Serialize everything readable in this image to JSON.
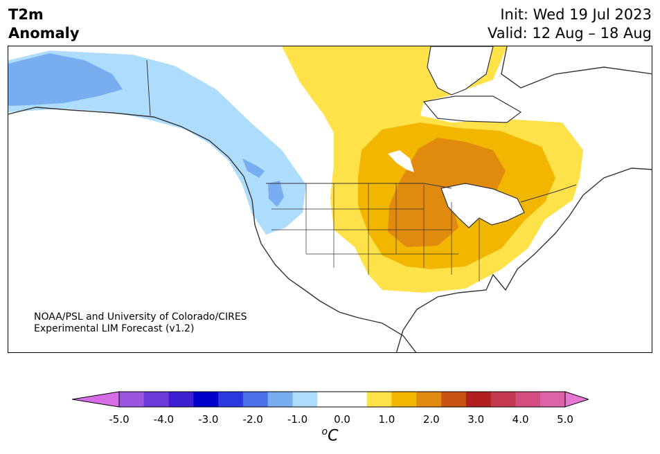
{
  "title": {
    "left_line1": "T2m",
    "left_line2": "Anomaly",
    "init": "Init: Wed 19 Jul 2023",
    "valid": "Valid: 12 Aug – 18 Aug"
  },
  "credit": {
    "line1": "NOAA/PSL and University of Colorado/CIRES",
    "line2": "Experimental LIM Forecast (v1.2)"
  },
  "colorbar": {
    "colors": [
      "#d56ee6",
      "#9b55de",
      "#6a3bd8",
      "#3e20d0",
      "#0000cc",
      "#2a3ade",
      "#4a70e8",
      "#78aef0",
      "#aedcfc",
      "#ffffff",
      "#ffffff",
      "#ffe14a",
      "#f2b500",
      "#e08a0e",
      "#c85414",
      "#b02020",
      "#c43850",
      "#d24e80",
      "#dc62aa",
      "#e676d2"
    ],
    "ticks": [
      "-5.0",
      "-4.0",
      "-3.0",
      "-2.0",
      "-1.0",
      "0.0",
      "1.0",
      "2.0",
      "3.0",
      "4.0",
      "5.0"
    ],
    "unit_sup": "o",
    "unit": "C"
  },
  "map_colors": {
    "land": "#ffffff",
    "coast": "#333333",
    "cool_light": "#aedcfc",
    "cool_mid": "#78aef0",
    "warm_light": "#ffe14a",
    "warm_mid": "#f2b500",
    "warm_strong": "#e08a0e"
  }
}
